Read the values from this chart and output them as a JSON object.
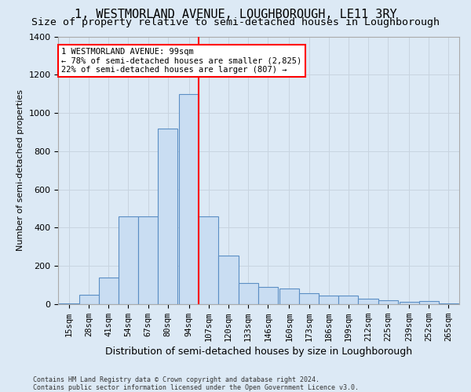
{
  "title": "1, WESTMORLAND AVENUE, LOUGHBOROUGH, LE11 3RY",
  "subtitle": "Size of property relative to semi-detached houses in Loughborough",
  "xlabel": "Distribution of semi-detached houses by size in Loughborough",
  "ylabel": "Number of semi-detached properties",
  "footnote": "Contains HM Land Registry data © Crown copyright and database right 2024.\nContains public sector information licensed under the Open Government Licence v3.0.",
  "annotation_title": "1 WESTMORLAND AVENUE: 99sqm",
  "annotation_line1": "← 78% of semi-detached houses are smaller (2,825)",
  "annotation_line2": "22% of semi-detached houses are larger (807) →",
  "bar_labels": [
    "15sqm",
    "28sqm",
    "41sqm",
    "54sqm",
    "67sqm",
    "80sqm",
    "94sqm",
    "107sqm",
    "120sqm",
    "133sqm",
    "146sqm",
    "160sqm",
    "173sqm",
    "186sqm",
    "199sqm",
    "212sqm",
    "225sqm",
    "239sqm",
    "252sqm",
    "265sqm"
  ],
  "bar_values": [
    5,
    50,
    140,
    460,
    460,
    920,
    1100,
    460,
    255,
    110,
    90,
    80,
    55,
    45,
    45,
    30,
    20,
    10,
    15,
    5
  ],
  "bin_width": 13,
  "bar_facecolor": "#c9ddf2",
  "bar_edgecolor": "#5b8ec4",
  "vline_color": "#ff0000",
  "vline_x": 100.5,
  "ylim": [
    0,
    1400
  ],
  "grid_color": "#c8d4e0",
  "background_color": "#dce9f5",
  "axis_bg_color": "#dce9f5",
  "title_fontsize": 11,
  "subtitle_fontsize": 9.5,
  "ylabel_fontsize": 8,
  "xlabel_fontsize": 9,
  "tick_fontsize": 7.5,
  "annot_fontsize": 7.5,
  "footnote_fontsize": 6
}
